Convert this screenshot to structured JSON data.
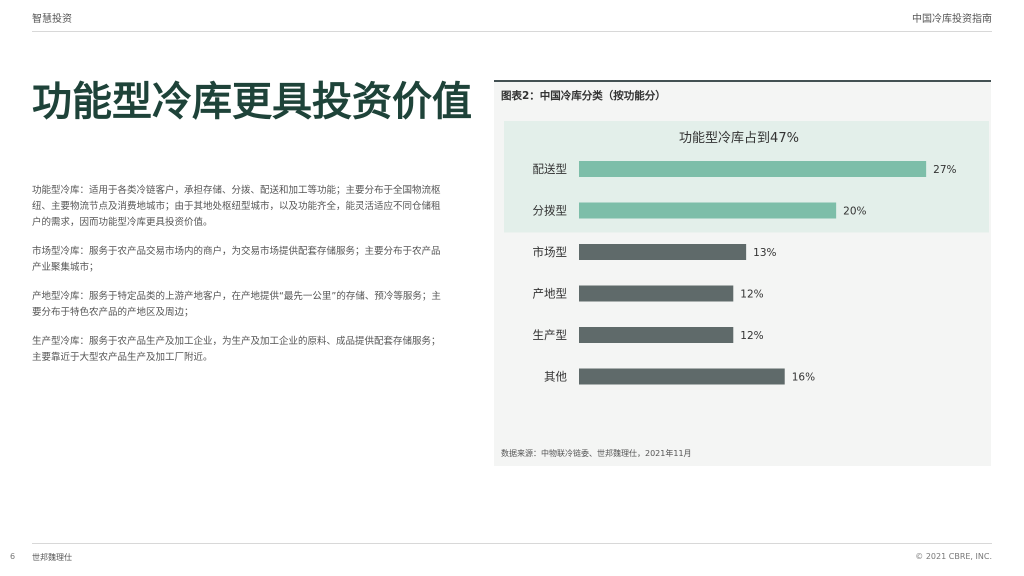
{
  "header": {
    "left": "智慧投资",
    "right": "中国冷库投资指南"
  },
  "title": "功能型冷库更具投资价值",
  "paragraphs": [
    "功能型冷库：适用于各类冷链客户，承担存储、分拨、配送和加工等功能；主要分布于全国物流枢纽、主要物流节点及消费地城市；由于其地处枢纽型城市，以及功能齐全，能灵活适应不同仓储租户的需求，因而功能型冷库更具投资价值。",
    "市场型冷库：服务于农产品交易市场内的商户，为交易市场提供配套存储服务；主要分布于农产品产业聚集城市；",
    "产地型冷库：服务于特定品类的上游产地客户，在产地提供“最先一公里”的存储、预冷等服务；主要分布于特色农产品的产地区及周边；",
    "生产型冷库：服务于农产品生产及加工企业，为生产及加工企业的原料、成品提供配套存储服务；主要靠近于大型农产品生产及加工厂附近。"
  ],
  "chart_panel": {
    "title": "图表2：中国冷库分类（按功能分）",
    "source": "数据来源：中物联冷链委、世邦魏理仕，2021年11月"
  },
  "chart_data": {
    "type": "bar",
    "orientation": "horizontal",
    "annotation": "功能型冷库占到47%",
    "categories": [
      "配送型",
      "分拨型",
      "市场型",
      "产地型",
      "生产型",
      "其他"
    ],
    "values": [
      27,
      20,
      13,
      12,
      12,
      16
    ],
    "value_labels": [
      "27%",
      "20%",
      "13%",
      "12%",
      "12%",
      "16%"
    ],
    "highlighted": [
      true,
      true,
      false,
      false,
      false,
      false
    ],
    "colors": {
      "highlight": "#7dbea9",
      "normal": "#5f6a6a",
      "highlight_bg": "#e3efea"
    },
    "xlim": [
      0,
      28
    ],
    "grid": false,
    "legend": "none"
  },
  "footer": {
    "page": "6",
    "brand": "世邦魏理仕",
    "copyright": "© 2021 CBRE, INC."
  }
}
